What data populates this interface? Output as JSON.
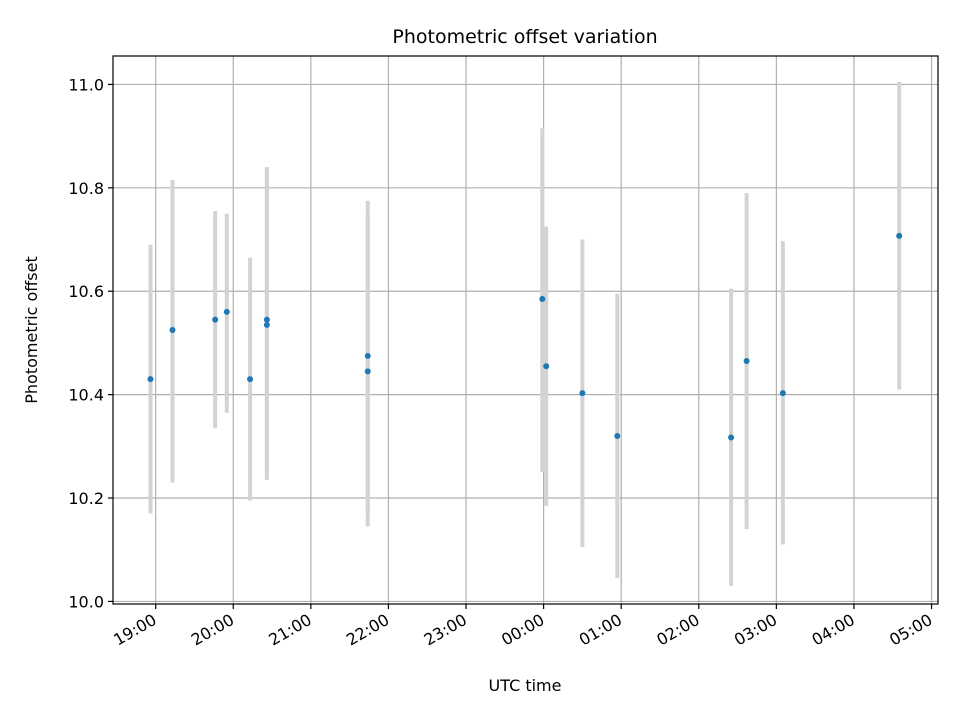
{
  "chart_data": {
    "type": "scatter",
    "title": "Photometric offset variation",
    "xlabel": "UTC time",
    "ylabel": "Photometric offset",
    "x_axis": {
      "kind": "time",
      "range": [
        "18:27",
        "05:05"
      ],
      "ticks": [
        "19:00",
        "20:00",
        "21:00",
        "22:00",
        "23:00",
        "00:00",
        "01:00",
        "02:00",
        "03:00",
        "04:00",
        "05:00"
      ]
    },
    "ylim": [
      9.995,
      11.055
    ],
    "y_ticks": [
      "10.0",
      "10.2",
      "10.4",
      "10.6",
      "10.8",
      "11.0"
    ],
    "grid": true,
    "marker_color": "#1f77b4",
    "errorbar_color": "#d3d3d3",
    "series": [
      {
        "points": [
          {
            "time": "18:56",
            "y": 10.43,
            "lo": 10.17,
            "hi": 10.69
          },
          {
            "time": "19:13",
            "y": 10.525,
            "lo": 10.23,
            "hi": 10.815
          },
          {
            "time": "19:46",
            "y": 10.545,
            "lo": 10.335,
            "hi": 10.755
          },
          {
            "time": "19:55",
            "y": 10.56,
            "lo": 10.365,
            "hi": 10.75
          },
          {
            "time": "20:13",
            "y": 10.43,
            "lo": 10.195,
            "hi": 10.665
          },
          {
            "time": "20:26",
            "y": 10.545,
            "lo": 10.25,
            "hi": 10.84
          },
          {
            "time": "20:26",
            "y": 10.535,
            "lo": 10.235,
            "hi": 10.835
          },
          {
            "time": "21:44",
            "y": 10.445,
            "lo": 10.145,
            "hi": 10.745
          },
          {
            "time": "21:44",
            "y": 10.475,
            "lo": 10.175,
            "hi": 10.775
          },
          {
            "time": "23:59",
            "y": 10.585,
            "lo": 10.25,
            "hi": 10.915
          },
          {
            "time": "00:02",
            "y": 10.455,
            "lo": 10.185,
            "hi": 10.725
          },
          {
            "time": "00:30",
            "y": 10.403,
            "lo": 10.105,
            "hi": 10.7
          },
          {
            "time": "00:57",
            "y": 10.32,
            "lo": 10.045,
            "hi": 10.595
          },
          {
            "time": "02:25",
            "y": 10.317,
            "lo": 10.03,
            "hi": 10.605
          },
          {
            "time": "02:37",
            "y": 10.465,
            "lo": 10.14,
            "hi": 10.79
          },
          {
            "time": "03:05",
            "y": 10.403,
            "lo": 10.11,
            "hi": 10.697
          },
          {
            "time": "04:35",
            "y": 10.707,
            "lo": 10.41,
            "hi": 11.005
          }
        ]
      }
    ]
  }
}
